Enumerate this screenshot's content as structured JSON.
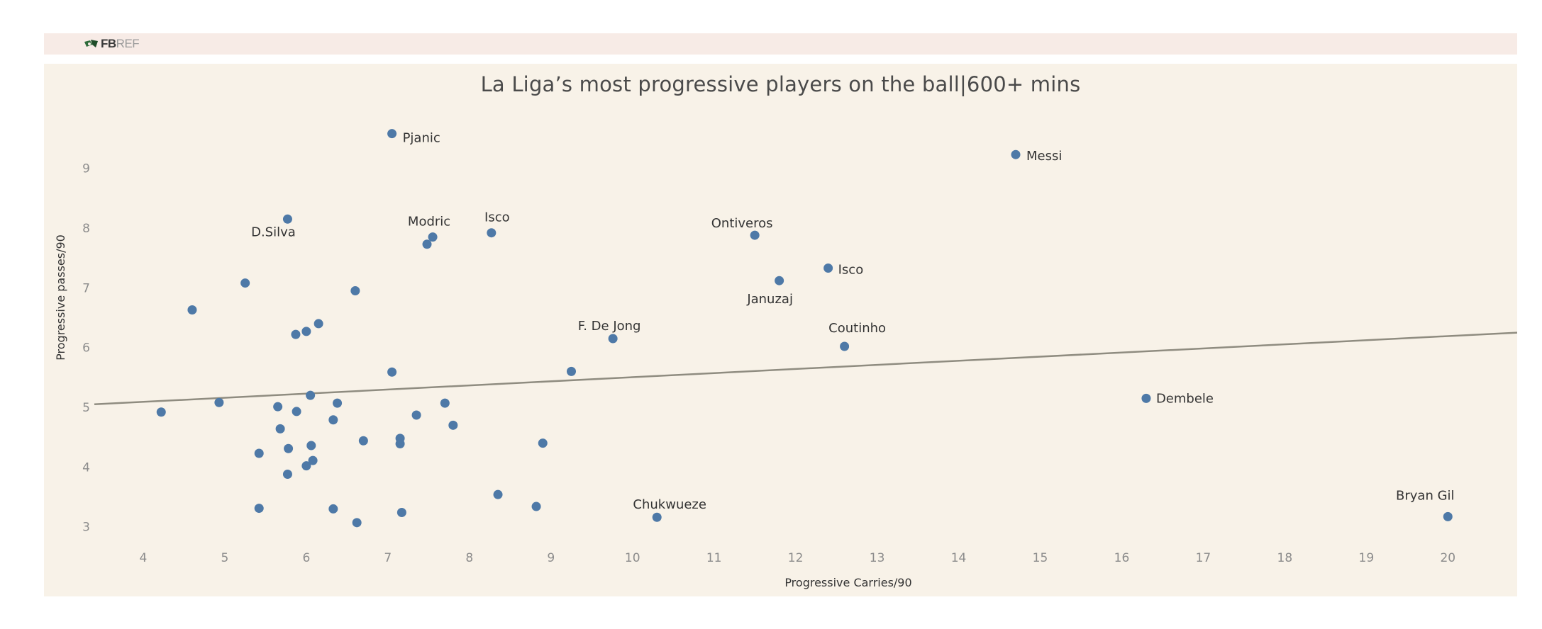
{
  "header": {
    "logo_main": "FB",
    "logo_light": "REF",
    "logo_icon": "fbref-logo-icon"
  },
  "colors": {
    "banner": "#f7ebe6",
    "panel": "#f8f2e8",
    "point": "#4e79a7",
    "trend": "#8f8c80"
  },
  "chart_data": {
    "type": "scatter",
    "title": "La Liga’s most progressive players on the ball|600+ mins",
    "xlabel": "Progressive Carries/90",
    "ylabel": "Progressive passes/90",
    "xticks": [
      4,
      5,
      6,
      7,
      8,
      9,
      10,
      11,
      12,
      13,
      14,
      15,
      16,
      17,
      18,
      19,
      20
    ],
    "yticks": [
      3,
      4,
      5,
      6,
      7,
      8,
      9
    ],
    "xlim": [
      3.4,
      20.85
    ],
    "ylim": [
      2.57,
      9.92
    ],
    "grid": false,
    "trend_line": {
      "x": [
        3.4,
        20.85
      ],
      "y": [
        5.05,
        6.25
      ]
    },
    "labeled_points": [
      {
        "name": "Pjanic",
        "x": 7.05,
        "y": 9.58
      },
      {
        "name": "Messi",
        "x": 14.7,
        "y": 9.23
      },
      {
        "name": "D.Silva",
        "x": 5.77,
        "y": 8.15
      },
      {
        "name": "Modric",
        "x": 7.55,
        "y": 7.85
      },
      {
        "name": "Isco",
        "x": 8.27,
        "y": 7.92
      },
      {
        "name": "Ontiveros",
        "x": 11.5,
        "y": 7.88
      },
      {
        "name": "Isco",
        "x": 12.4,
        "y": 7.33
      },
      {
        "name": "Januzaj",
        "x": 11.8,
        "y": 7.12
      },
      {
        "name": "F. De Jong",
        "x": 9.76,
        "y": 6.15
      },
      {
        "name": "Coutinho",
        "x": 12.6,
        "y": 6.02
      },
      {
        "name": "Dembele",
        "x": 16.3,
        "y": 5.15
      },
      {
        "name": "Chukwueze",
        "x": 10.3,
        "y": 3.16
      },
      {
        "name": "Bryan Gil",
        "x": 20.0,
        "y": 3.17
      }
    ],
    "other_points": [
      {
        "x": 7.48,
        "y": 7.73
      },
      {
        "x": 5.25,
        "y": 7.08
      },
      {
        "x": 6.6,
        "y": 6.95
      },
      {
        "x": 4.6,
        "y": 6.63
      },
      {
        "x": 6.15,
        "y": 6.4
      },
      {
        "x": 6.0,
        "y": 6.27
      },
      {
        "x": 5.87,
        "y": 6.22
      },
      {
        "x": 7.05,
        "y": 5.59
      },
      {
        "x": 9.25,
        "y": 5.6
      },
      {
        "x": 6.05,
        "y": 5.2
      },
      {
        "x": 4.93,
        "y": 5.08
      },
      {
        "x": 6.38,
        "y": 5.07
      },
      {
        "x": 7.7,
        "y": 5.07
      },
      {
        "x": 5.65,
        "y": 5.01
      },
      {
        "x": 5.88,
        "y": 4.93
      },
      {
        "x": 4.22,
        "y": 4.92
      },
      {
        "x": 7.35,
        "y": 4.87
      },
      {
        "x": 6.33,
        "y": 4.79
      },
      {
        "x": 7.8,
        "y": 4.7
      },
      {
        "x": 5.68,
        "y": 4.64
      },
      {
        "x": 7.15,
        "y": 4.48
      },
      {
        "x": 6.7,
        "y": 4.44
      },
      {
        "x": 7.15,
        "y": 4.39
      },
      {
        "x": 8.9,
        "y": 4.4
      },
      {
        "x": 6.06,
        "y": 4.36
      },
      {
        "x": 5.78,
        "y": 4.31
      },
      {
        "x": 5.42,
        "y": 4.23
      },
      {
        "x": 6.08,
        "y": 4.11
      },
      {
        "x": 6.0,
        "y": 4.02
      },
      {
        "x": 5.77,
        "y": 3.88
      },
      {
        "x": 8.35,
        "y": 3.54
      },
      {
        "x": 8.82,
        "y": 3.34
      },
      {
        "x": 5.42,
        "y": 3.31
      },
      {
        "x": 6.33,
        "y": 3.3
      },
      {
        "x": 7.17,
        "y": 3.24
      },
      {
        "x": 6.62,
        "y": 3.07
      }
    ]
  }
}
